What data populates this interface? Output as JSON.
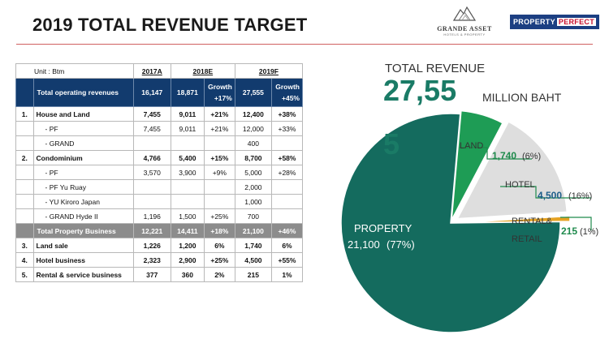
{
  "header": {
    "title": "2019 TOTAL REVENUE TARGET",
    "logo_grande_name": "GRANDE ASSET",
    "logo_grande_sub": "HOTELS & PROPERTY",
    "logo_pp_a": "PROPERTY",
    "logo_pp_b": "PERFECT"
  },
  "table": {
    "unit": "Unit : Btm",
    "col_2017": "2017A",
    "col_2018": "2018E",
    "col_2019": "2019F",
    "growth_label": "Growth",
    "rows": [
      {
        "no": "",
        "item": "Total operating revenues",
        "a2017": "16,147",
        "e2018": "18,871",
        "g2018": "+17%",
        "f2019": "27,555",
        "g2019": "+45%"
      },
      {
        "no": "1.",
        "item": "House and Land",
        "a2017": "7,455",
        "e2018": "9,011",
        "g2018": "+21%",
        "f2019": "12,400",
        "g2019": "+38%"
      },
      {
        "no": "",
        "item": "- PF",
        "a2017": "7,455",
        "e2018": "9,011",
        "g2018": "+21%",
        "f2019": "12,000",
        "g2019": "+33%"
      },
      {
        "no": "",
        "item": "- GRAND",
        "a2017": "",
        "e2018": "",
        "g2018": "",
        "f2019": "400",
        "g2019": ""
      },
      {
        "no": "2.",
        "item": "Condominium",
        "a2017": "4,766",
        "e2018": "5,400",
        "g2018": "+15%",
        "f2019": "8,700",
        "g2019": "+58%"
      },
      {
        "no": "",
        "item": "- PF",
        "a2017": "3,570",
        "e2018": "3,900",
        "g2018": "+9%",
        "f2019": "5,000",
        "g2019": "+28%"
      },
      {
        "no": "",
        "item": "- PF Yu Ruay",
        "a2017": "",
        "e2018": "",
        "g2018": "",
        "f2019": "2,000",
        "g2019": ""
      },
      {
        "no": "",
        "item": "- YU Kiroro Japan",
        "a2017": "",
        "e2018": "",
        "g2018": "",
        "f2019": "1,000",
        "g2019": ""
      },
      {
        "no": "",
        "item": "- GRAND Hyde II",
        "a2017": "1,196",
        "e2018": "1,500",
        "g2018": "+25%",
        "f2019": "700",
        "g2019": ""
      },
      {
        "no": "",
        "item": "Total Property Business",
        "a2017": "12,221",
        "e2018": "14,411",
        "g2018": "+18%",
        "f2019": "21,100",
        "g2019": "+46%"
      },
      {
        "no": "3.",
        "item": "Land sale",
        "a2017": "1,226",
        "e2018": "1,200",
        "g2018": "6%",
        "f2019": "1,740",
        "g2019": "6%"
      },
      {
        "no": "4.",
        "item": "Hotel business",
        "a2017": "2,323",
        "e2018": "2,900",
        "g2018": "+25%",
        "f2019": "4,500",
        "g2019": "+55%"
      },
      {
        "no": "5.",
        "item": "Rental & service  business",
        "a2017": "377",
        "e2018": "360",
        "g2018": "2%",
        "f2019": "215",
        "g2019": "1%"
      }
    ]
  },
  "summary": {
    "label": "TOTAL REVENUE",
    "value": "27,55",
    "value_overflow": "5",
    "unit": "MILLION BAHT"
  },
  "chart_data": {
    "type": "pie",
    "title": "",
    "slices": [
      {
        "label": "PROPERTY",
        "value": 21100,
        "value_label": "21,100",
        "pct_label": "(77%)",
        "color": "#146b5e"
      },
      {
        "label": "LAND",
        "value": 1740,
        "value_label": "1,740",
        "pct_label": "(6%)",
        "color": "#1e9c55"
      },
      {
        "label": "HOTEL",
        "value": 4500,
        "value_label": "4,500",
        "pct_label": "(16%)",
        "color": "#dedede"
      },
      {
        "label_line1": "RENTAL&",
        "label_line2": "RETAIL",
        "label": "RENTAL& RETAIL",
        "value": 215,
        "value_label": "215",
        "pct_label": "(1%)",
        "color": "#e6a323"
      }
    ]
  }
}
